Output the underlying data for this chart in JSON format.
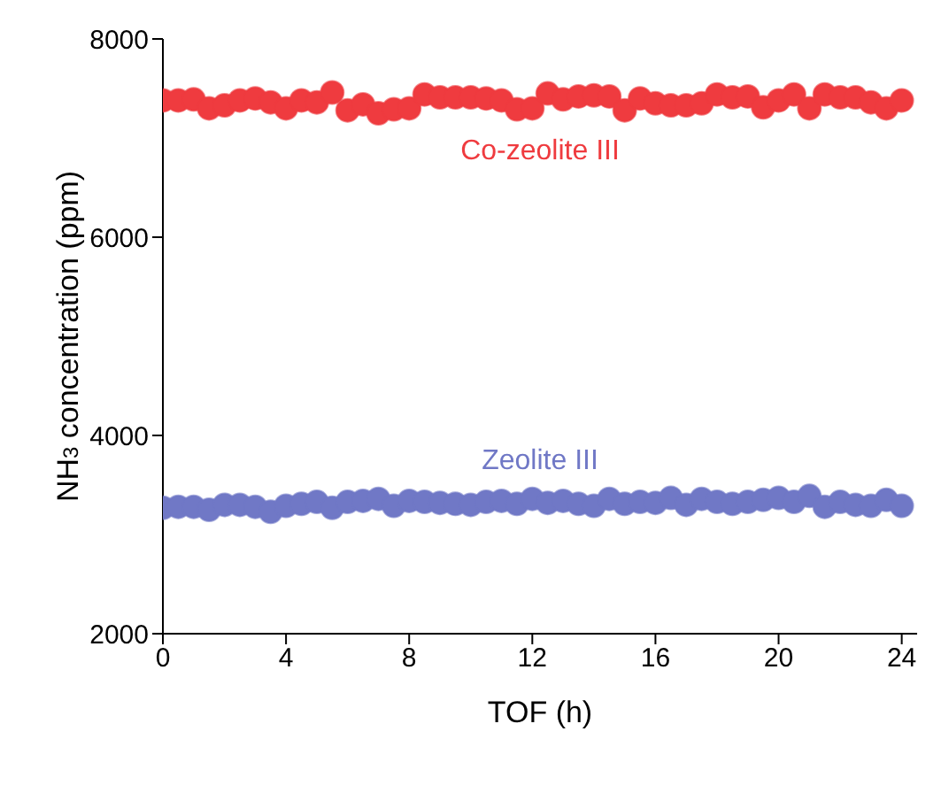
{
  "chart_data": {
    "type": "scatter",
    "xlabel": "TOF (h)",
    "ylabel": "NH$_{3}$ concentration (ppm)",
    "x": [
      0,
      0.5,
      1,
      1.5,
      2,
      2.5,
      3,
      3.5,
      4,
      4.5,
      5,
      5.5,
      6,
      6.5,
      7,
      7.5,
      8,
      8.5,
      9,
      9.5,
      10,
      10.5,
      11,
      11.5,
      12,
      12.5,
      13,
      13.5,
      14,
      14.5,
      15,
      15.5,
      16,
      16.5,
      17,
      17.5,
      18,
      18.5,
      19,
      19.5,
      20,
      20.5,
      21,
      21.5,
      22,
      22.5,
      23,
      23.5,
      24
    ],
    "series": [
      {
        "color": "#ef3b3f",
        "values": [
          7380,
          7380,
          7390,
          7300,
          7330,
          7380,
          7400,
          7360,
          7300,
          7380,
          7360,
          7460,
          7280,
          7340,
          7250,
          7290,
          7300,
          7440,
          7410,
          7410,
          7410,
          7400,
          7380,
          7290,
          7300,
          7450,
          7390,
          7420,
          7430,
          7420,
          7280,
          7400,
          7350,
          7330,
          7330,
          7350,
          7440,
          7410,
          7420,
          7310,
          7380,
          7440,
          7300,
          7440,
          7410,
          7410,
          7360,
          7300,
          7380
        ]
      },
      {
        "color": "#7078c6",
        "values": [
          3270,
          3280,
          3280,
          3250,
          3300,
          3300,
          3280,
          3230,
          3290,
          3310,
          3330,
          3270,
          3330,
          3340,
          3360,
          3290,
          3340,
          3330,
          3320,
          3310,
          3300,
          3330,
          3340,
          3310,
          3360,
          3320,
          3340,
          3310,
          3290,
          3360,
          3310,
          3330,
          3320,
          3370,
          3300,
          3360,
          3330,
          3310,
          3330,
          3350,
          3370,
          3330,
          3390,
          3280,
          3330,
          3300,
          3290,
          3350,
          3290
        ]
      }
    ],
    "annotations": [
      "Co-zeolite III",
      "Zeolite III"
    ],
    "xlim": [
      0,
      24.5
    ],
    "xticks": [
      0,
      4,
      8,
      12,
      16,
      20,
      24
    ],
    "ylim": [
      2000,
      8000
    ],
    "yticks": [
      2000,
      4000,
      6000,
      8000
    ],
    "marker": "circle"
  }
}
